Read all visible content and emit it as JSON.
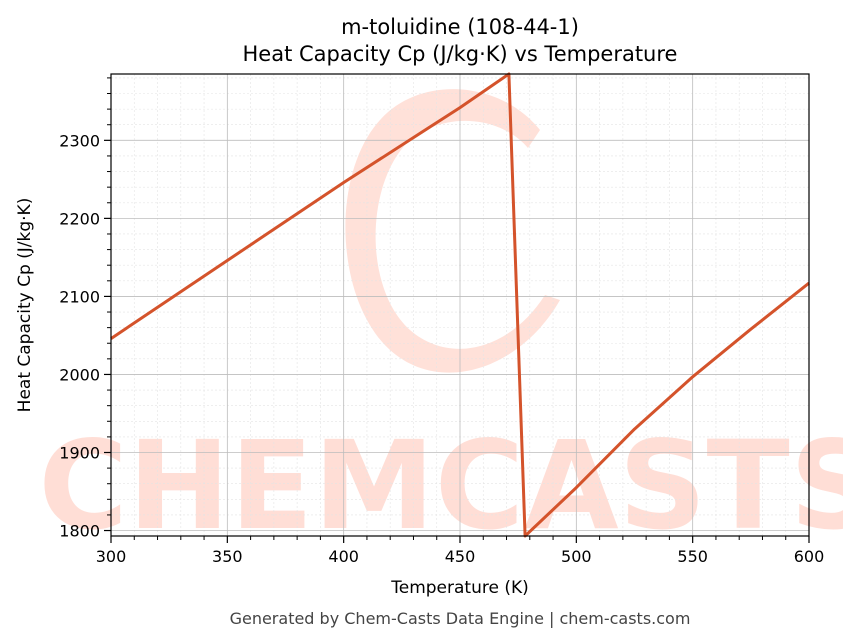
{
  "chart_data": {
    "type": "line",
    "title": "m-toluidine (108-44-1)",
    "subtitle": "Heat Capacity Cp (J/kg·K) vs Temperature",
    "xlabel": "Temperature (K)",
    "ylabel": "Heat Capacity Cp (J/kg·K)",
    "xlim": [
      300,
      600
    ],
    "ylim": [
      1793,
      2385
    ],
    "xticks": [
      300,
      350,
      400,
      450,
      500,
      550,
      600
    ],
    "yticks": [
      1800,
      1900,
      2000,
      2100,
      2200,
      2300
    ],
    "grid": true,
    "line_color": "#d4532b",
    "series": [
      {
        "x": [
          300,
          350,
          400,
          450,
          471,
          478,
          500,
          525,
          550,
          575,
          600
        ],
        "values": [
          2046,
          2146,
          2246,
          2342,
          2385,
          1793,
          1855,
          1930,
          1997,
          2058,
          2117
        ]
      }
    ]
  },
  "watermark": {
    "text": "CHEMCASTS",
    "color": "#ffd9d0"
  },
  "footer": {
    "text": "Generated by Chem-Casts Data Engine | chem-casts.com"
  }
}
